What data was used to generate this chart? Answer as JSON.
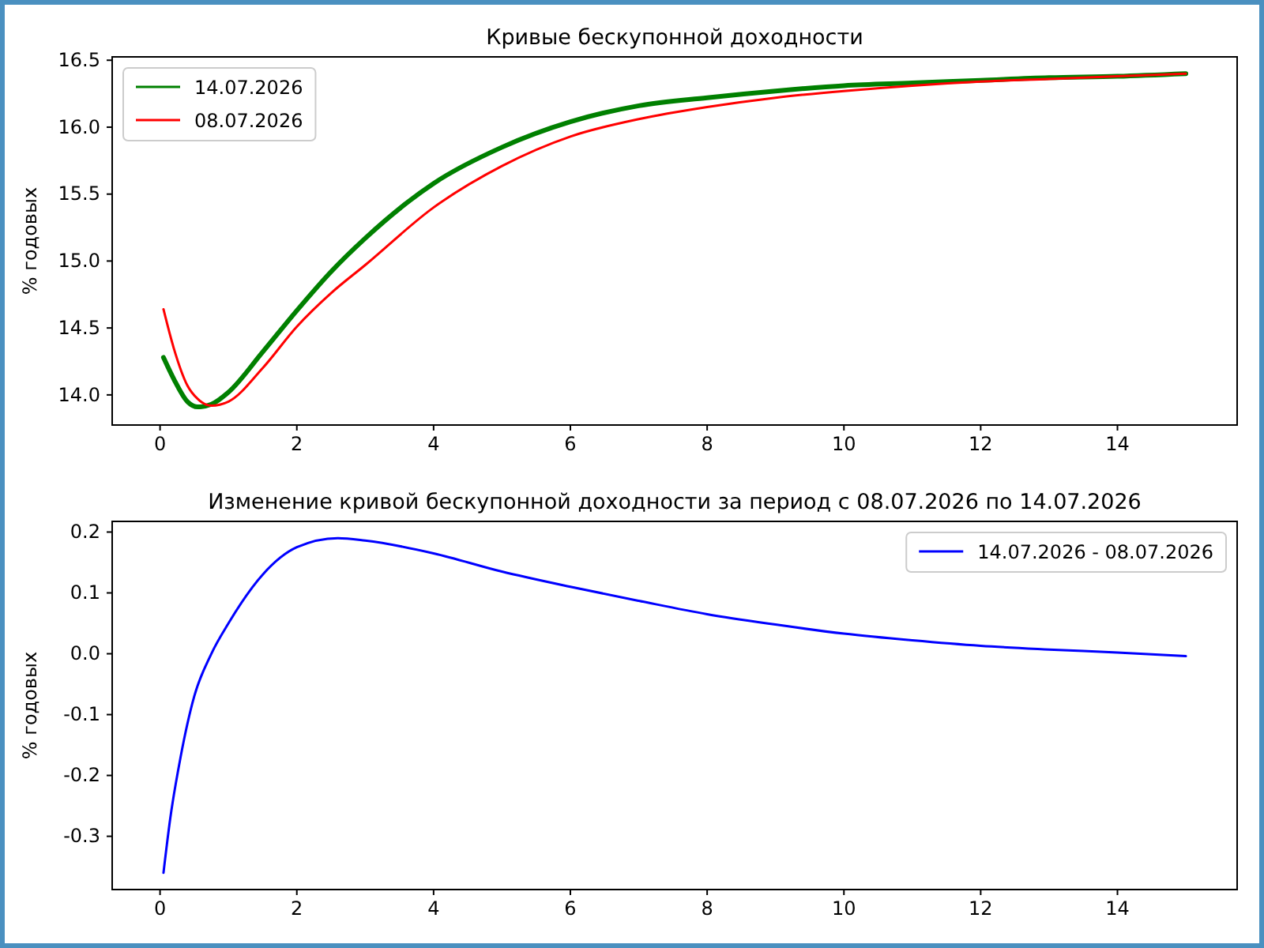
{
  "chart_data": [
    {
      "type": "line",
      "title": "Кривые бескупонной доходности",
      "ylabel": "% годовых",
      "xlim": [
        -0.7,
        15.75
      ],
      "xticks": [
        0,
        2,
        4,
        6,
        8,
        10,
        12,
        14
      ],
      "ylim": [
        13.775,
        16.525
      ],
      "yticks": [
        {
          "value": 14,
          "label": "14.0"
        },
        {
          "value": 14.5,
          "label": "14.5"
        },
        {
          "value": 15,
          "label": "15.0"
        },
        {
          "value": 15.5,
          "label": "15.5"
        },
        {
          "value": 16,
          "label": "16.0"
        },
        {
          "value": 16.5,
          "label": "16.5"
        }
      ],
      "legend": "top left",
      "grid": false,
      "x": [
        0.05,
        0.2,
        0.4,
        0.55,
        0.75,
        1,
        1.5,
        2,
        2.5,
        3,
        4,
        5,
        6,
        7,
        8,
        9,
        10,
        11,
        12,
        13,
        14,
        15
      ],
      "series": [
        {
          "name": "14.07.2026",
          "color": "#008000",
          "values": [
            14.28,
            14.12,
            13.95,
            13.91,
            13.93,
            14.02,
            14.32,
            14.63,
            14.92,
            15.17,
            15.58,
            15.85,
            16.04,
            16.16,
            16.22,
            16.27,
            16.31,
            16.33,
            16.35,
            16.37,
            16.38,
            16.4
          ]
        },
        {
          "name": "08.07.2026",
          "color": "#ff0000",
          "values": [
            14.64,
            14.35,
            14.07,
            13.97,
            13.92,
            13.95,
            14.2,
            14.51,
            14.76,
            14.97,
            15.4,
            15.71,
            15.93,
            16.06,
            16.15,
            16.22,
            16.27,
            16.31,
            16.34,
            16.36,
            16.38,
            16.4
          ]
        }
      ]
    },
    {
      "type": "line",
      "title": "Изменение кривой бескупонной доходности за период с 08.07.2026 по 14.07.2026",
      "ylabel": "% годовых",
      "xlim": [
        -0.7,
        15.75
      ],
      "xticks": [
        0,
        2,
        4,
        6,
        8,
        10,
        12,
        14
      ],
      "ylim": [
        -0.3875,
        0.2175
      ],
      "yticks": [
        -0.3,
        -0.2,
        -0.1,
        {
          "value": 0,
          "label": "0.0"
        },
        0.1,
        0.2
      ],
      "legend": "top right",
      "grid": false,
      "x": [
        0.05,
        0.15,
        0.3,
        0.5,
        0.75,
        1,
        1.5,
        2,
        2.6,
        3,
        4,
        5,
        6,
        7,
        8,
        9,
        10,
        11,
        12,
        13,
        14,
        15
      ],
      "series": [
        {
          "name": "14.07.2026 - 08.07.2026",
          "color": "#0000ff",
          "values": [
            -0.36,
            -0.27,
            -0.17,
            -0.07,
            0.0,
            0.05,
            0.13,
            0.175,
            0.19,
            0.186,
            0.165,
            0.135,
            0.11,
            0.087,
            0.065,
            0.048,
            0.033,
            0.022,
            0.013,
            0.007,
            0.002,
            -0.004
          ]
        }
      ]
    }
  ]
}
